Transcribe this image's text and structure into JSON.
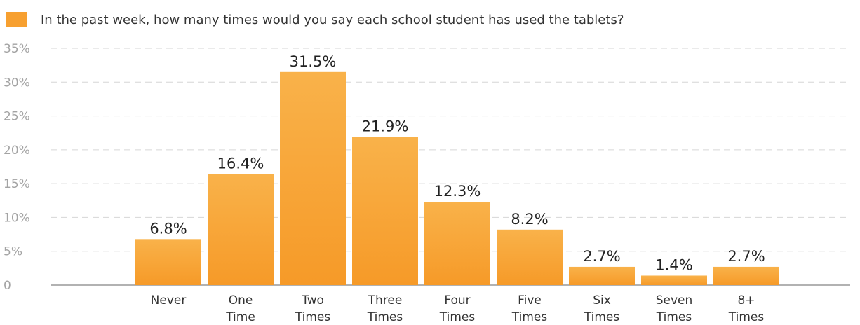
{
  "chart_data": {
    "type": "bar",
    "title": "In the past week, how many times would you say each school student has used the tablets?",
    "categories": [
      "Never",
      "One Time",
      "Two Times",
      "Three Times",
      "Four Times",
      "Five Times",
      "Six Times",
      "Seven Times",
      "8+ Times"
    ],
    "category_lines": [
      [
        "Never"
      ],
      [
        "One",
        "Time"
      ],
      [
        "Two",
        "Times"
      ],
      [
        "Three",
        "Times"
      ],
      [
        "Four",
        "Times"
      ],
      [
        "Five",
        "Times"
      ],
      [
        "Six",
        "Times"
      ],
      [
        "Seven",
        "Times"
      ],
      [
        "8+",
        "Times"
      ]
    ],
    "values": [
      6.8,
      16.4,
      31.5,
      21.9,
      12.3,
      8.2,
      2.7,
      1.4,
      2.7
    ],
    "value_labels": [
      "6.8%",
      "16.4%",
      "31.5%",
      "21.9%",
      "12.3%",
      "8.2%",
      "2.7%",
      "1.4%",
      "2.7%"
    ],
    "ylim": [
      0,
      35
    ],
    "yticks": [
      0,
      5,
      10,
      15,
      20,
      25,
      30,
      35
    ],
    "ytick_labels": [
      "0",
      "5%",
      "10%",
      "15%",
      "20%",
      "25%",
      "30%",
      "35%"
    ],
    "grid": true,
    "legend": "top-left",
    "colors": {
      "bar": "#f7a030",
      "bar_top": "#f9b24a",
      "grid": "#d6d6d6",
      "axis": "#999999"
    }
  }
}
